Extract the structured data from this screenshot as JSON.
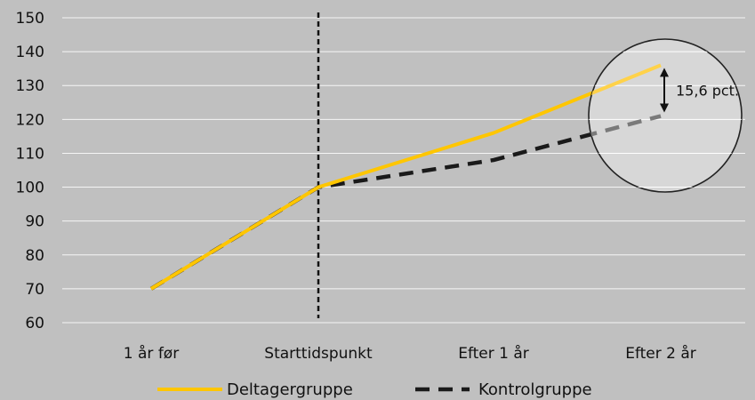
{
  "chart_data": {
    "type": "line",
    "categories": [
      "1 år før",
      "Starttidspunkt",
      "Efter 1 år",
      "Efter 2 år"
    ],
    "series": [
      {
        "name": "Deltagergruppe",
        "values": [
          70,
          100,
          116,
          136
        ],
        "color": "#ffc600",
        "style": "solid"
      },
      {
        "name": "Kontrolgruppe",
        "values": [
          70,
          100,
          108,
          121
        ],
        "color": "#1a1a1a",
        "style": "dashed"
      }
    ],
    "ylim": [
      60,
      150
    ],
    "yticks": [
      60,
      70,
      80,
      90,
      100,
      110,
      120,
      130,
      140,
      150
    ],
    "grid": true,
    "legend_position": "bottom",
    "reference_line_at": "Starttidspunkt",
    "annotation": {
      "text": "15,6 pct.",
      "category": "Efter 2 år"
    }
  }
}
